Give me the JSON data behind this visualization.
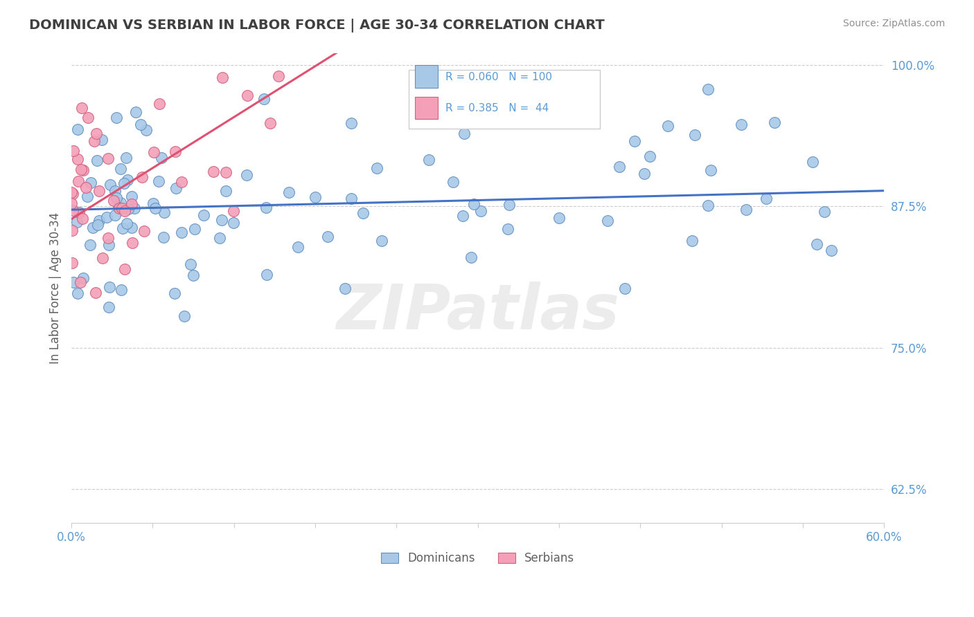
{
  "title": "DOMINICAN VS SERBIAN IN LABOR FORCE | AGE 30-34 CORRELATION CHART",
  "source": "Source: ZipAtlas.com",
  "ylabel": "In Labor Force | Age 30-34",
  "xlim": [
    0.0,
    0.6
  ],
  "ylim": [
    0.595,
    1.01
  ],
  "ytick_positions": [
    0.625,
    0.75,
    0.875,
    1.0
  ],
  "ytick_labels": [
    "62.5%",
    "75.0%",
    "87.5%",
    "100.0%"
  ],
  "dominican_color": "#a8c8e8",
  "serbian_color": "#f4a0b8",
  "dominican_edge": "#6090c0",
  "serbian_edge": "#d06080",
  "trendline_dominican": "#4472c4",
  "trendline_serbian": "#e05070",
  "R_dominican": 0.06,
  "N_dominican": 100,
  "R_serbian": 0.385,
  "N_serbian": 44,
  "legend_labels": [
    "Dominicans",
    "Serbians"
  ],
  "background_color": "#ffffff",
  "grid_color": "#cccccc",
  "title_color": "#404040",
  "axis_color": "#5b9bd5",
  "watermark": "ZIPatlas"
}
